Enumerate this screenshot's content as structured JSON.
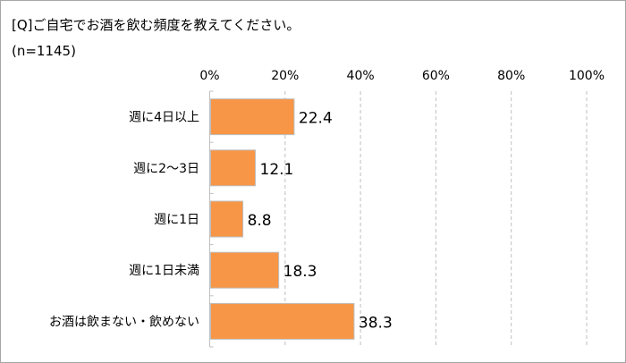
{
  "chart_data": {
    "type": "bar",
    "orientation": "horizontal",
    "title": "[Q]ご自宅でお酒を飲む頻度を教えてください。",
    "subtitle": "(n=1145)",
    "categories": [
      "週に4日以上",
      "週に2～3日",
      "週に1日",
      "週に1日未満",
      "お酒は飲まない・飲めない"
    ],
    "values": [
      22.4,
      12.1,
      8.8,
      18.3,
      38.3
    ],
    "xlim": [
      0,
      100
    ],
    "x_ticks": [
      "0%",
      "20%",
      "40%",
      "60%",
      "80%",
      "100%"
    ],
    "x_axis_position": "top",
    "grid": "vertical dashed",
    "legend": "none",
    "colors": {
      "bar": "#F79646",
      "bar_border": "#BFBFBF",
      "grid": "#BFBFBF"
    }
  }
}
